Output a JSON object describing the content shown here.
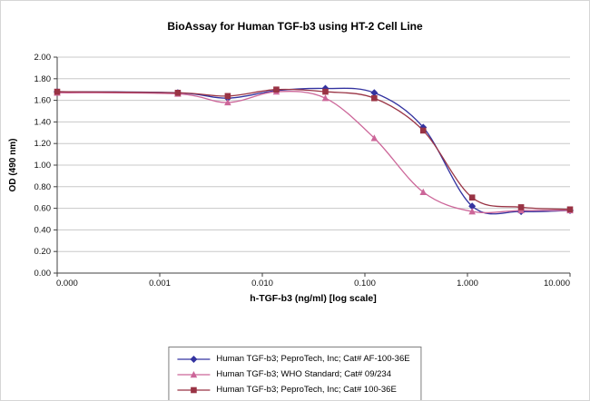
{
  "figure": {
    "title": "BioAssay for Human TGF-b3 using HT-2 Cell Line"
  },
  "chart_data": {
    "type": "line",
    "title": "BioAssay for Human TGF-b3 using HT-2 Cell Line",
    "xlabel": "h-TGF-b3 (ng/ml) [log scale]",
    "ylabel": "OD (490 nm)",
    "x_scale": "log",
    "grid": "horizontal",
    "legend_position": "bottom",
    "ylim": [
      0,
      2
    ],
    "y_tick_labels": [
      "2.00",
      "1.80",
      "1.60",
      "1.40",
      "1.20",
      "1.00",
      "0.80",
      "0.60",
      "0.40",
      "0.20",
      "0.00"
    ],
    "x_tick_labels": [
      "0.000",
      "0.001",
      "0.010",
      "0.100",
      "1.000",
      "10.000"
    ],
    "x": [
      0,
      0.0015,
      0.0046,
      0.0137,
      0.0412,
      0.1235,
      0.3704,
      1.111,
      3.333,
      10
    ],
    "series": [
      {
        "name": "Human TGF-b3; PeproTech, Inc; Cat# AF-100-36E",
        "marker": "diamond",
        "color": "#3333A0",
        "values": [
          1.68,
          1.67,
          1.62,
          1.69,
          1.71,
          1.67,
          1.35,
          0.62,
          0.57,
          0.58
        ]
      },
      {
        "name": "Human TGF-b3; WHO Standard; Cat# 09/234",
        "marker": "triangle",
        "color": "#CC6699",
        "values": [
          1.67,
          1.66,
          1.58,
          1.68,
          1.62,
          1.25,
          0.75,
          0.57,
          0.58,
          0.58
        ]
      },
      {
        "name": "Human TGF-b3; PeproTech, Inc; Cat# 100-36E",
        "marker": "square",
        "color": "#993344",
        "values": [
          1.68,
          1.67,
          1.64,
          1.7,
          1.68,
          1.62,
          1.32,
          0.7,
          0.61,
          0.59
        ]
      }
    ]
  }
}
